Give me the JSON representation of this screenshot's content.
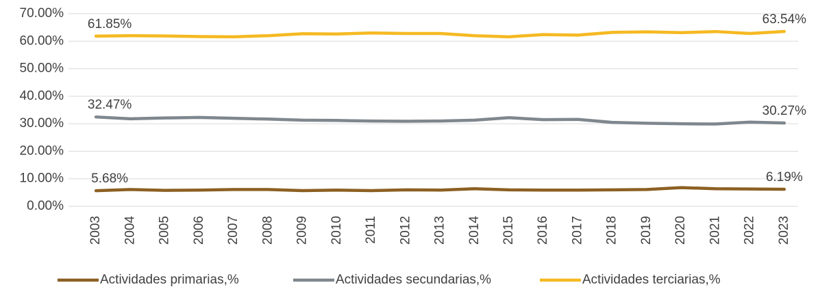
{
  "chart_data": {
    "type": "line",
    "categories": [
      "2003",
      "2004",
      "2005",
      "2006",
      "2007",
      "2008",
      "2009",
      "2010",
      "2011",
      "2012",
      "2013",
      "2014",
      "2015",
      "2016",
      "2017",
      "2018",
      "2019",
      "2020",
      "2021",
      "2022",
      "2023"
    ],
    "series": [
      {
        "name": "Actividades primarias,%",
        "color": "#8c6023",
        "values": [
          5.68,
          6.1,
          5.8,
          5.9,
          6.1,
          6.1,
          5.7,
          5.9,
          5.7,
          6.0,
          5.9,
          6.4,
          6.0,
          5.9,
          5.9,
          6.0,
          6.1,
          6.8,
          6.4,
          6.3,
          6.19
        ],
        "value_labels": [
          "5.68%",
          null,
          null,
          null,
          null,
          null,
          null,
          null,
          null,
          null,
          null,
          null,
          null,
          null,
          null,
          null,
          null,
          null,
          null,
          null,
          "6.19%"
        ]
      },
      {
        "name": "Actividades secundarias,%",
        "color": "#7f878e",
        "values": [
          32.47,
          31.8,
          32.1,
          32.3,
          32.0,
          31.7,
          31.3,
          31.2,
          31.0,
          30.9,
          31.0,
          31.3,
          32.2,
          31.5,
          31.6,
          30.5,
          30.2,
          30.0,
          29.9,
          30.6,
          30.27
        ],
        "value_labels": [
          "32.47%",
          null,
          null,
          null,
          null,
          null,
          null,
          null,
          null,
          null,
          null,
          null,
          null,
          null,
          null,
          null,
          null,
          null,
          null,
          null,
          "30.27%"
        ]
      },
      {
        "name": "Actividades terciarias,%",
        "color": "#f5b922",
        "values": [
          61.85,
          62.0,
          61.9,
          61.7,
          61.6,
          62.0,
          62.7,
          62.6,
          63.0,
          62.8,
          62.8,
          62.0,
          61.6,
          62.4,
          62.2,
          63.2,
          63.4,
          63.1,
          63.5,
          62.8,
          63.54
        ],
        "value_labels": [
          "61.85%",
          null,
          null,
          null,
          null,
          null,
          null,
          null,
          null,
          null,
          null,
          null,
          null,
          null,
          null,
          null,
          null,
          null,
          null,
          null,
          "63.54%"
        ]
      }
    ],
    "ylim": [
      0,
      70
    ],
    "yticks": [
      {
        "value": 0,
        "label": "0.00%"
      },
      {
        "value": 10,
        "label": "10.00%"
      },
      {
        "value": 20,
        "label": "20.00%"
      },
      {
        "value": 30,
        "label": "30.00%"
      },
      {
        "value": 40,
        "label": "40.00%"
      },
      {
        "value": 50,
        "label": "50.00%"
      },
      {
        "value": 60,
        "label": "60.00%"
      },
      {
        "value": 70,
        "label": "70.00%"
      }
    ],
    "grid": true,
    "legend": "bottom"
  }
}
